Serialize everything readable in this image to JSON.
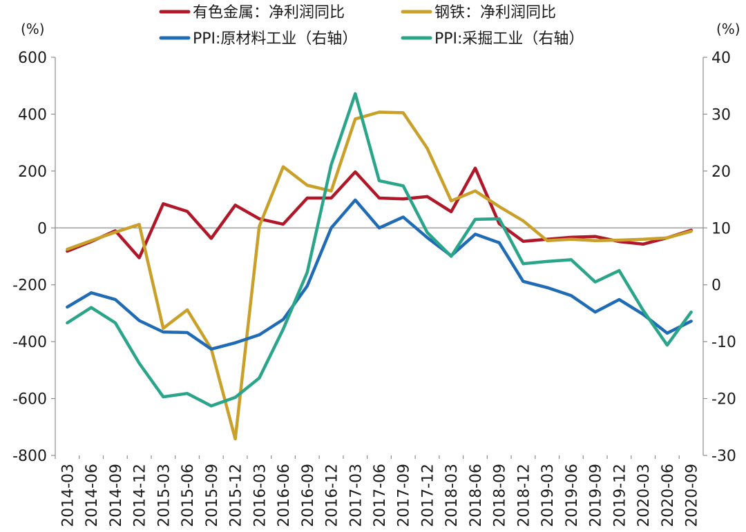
{
  "chart_data": {
    "type": "line",
    "x": [
      "2014-03",
      "2014-06",
      "2014-09",
      "2014-12",
      "2015-03",
      "2015-06",
      "2015-09",
      "2015-12",
      "2016-03",
      "2016-06",
      "2016-09",
      "2016-12",
      "2017-03",
      "2017-06",
      "2017-09",
      "2017-12",
      "2018-03",
      "2018-06",
      "2018-09",
      "2018-12",
      "2019-03",
      "2019-06",
      "2019-09",
      "2019-12",
      "2020-03",
      "2020-06",
      "2020-09"
    ],
    "left_axis": {
      "unit": "(%)",
      "ylim": [
        -800,
        600
      ],
      "ticks": [
        600,
        400,
        200,
        0,
        -200,
        -400,
        -600,
        -800
      ]
    },
    "right_axis": {
      "unit": "(%)",
      "ylim": [
        -30,
        40
      ],
      "ticks": [
        40,
        30,
        20,
        10,
        0,
        -10,
        -20,
        -30
      ]
    },
    "series": [
      {
        "name": "有色金属：净利润同比",
        "axis": "left",
        "color": "#b0182a",
        "values": [
          -82,
          -48,
          -10,
          -105,
          85,
          58,
          -37,
          80,
          32,
          13,
          105,
          105,
          197,
          105,
          102,
          110,
          57,
          210,
          15,
          -47,
          -40,
          -33,
          -30,
          -48,
          -57,
          -35,
          -8
        ]
      },
      {
        "name": "钢铁：净利润同比",
        "axis": "left",
        "color": "#c9a02a",
        "values": [
          -75,
          -45,
          -15,
          12,
          -353,
          -288,
          -425,
          -742,
          5,
          215,
          150,
          130,
          383,
          407,
          405,
          280,
          95,
          130,
          75,
          25,
          -45,
          -40,
          -45,
          -43,
          -40,
          -35,
          -12
        ]
      },
      {
        "name": "PPI:原材料工业（右轴）",
        "axis": "right",
        "color": "#1f6bb5",
        "values": [
          -3.9,
          -1.4,
          -2.6,
          -6.3,
          -8.3,
          -8.4,
          -11.3,
          -10.2,
          -8.8,
          -6.1,
          -0.2,
          10.0,
          14.9,
          10.0,
          11.9,
          8.3,
          5.1,
          8.9,
          7.4,
          0.6,
          -0.5,
          -1.9,
          -4.8,
          -2.6,
          -5.2,
          -8.5,
          -6.4
        ]
      },
      {
        "name": "PPI:采掘工业（右轴）",
        "axis": "right",
        "color": "#2aa58a",
        "values": [
          -6.7,
          -4.0,
          -6.7,
          -13.8,
          -19.7,
          -19.1,
          -21.3,
          -19.8,
          -16.4,
          -7.8,
          2.2,
          21.1,
          33.6,
          18.3,
          17.4,
          9.2,
          5.0,
          11.5,
          11.6,
          3.7,
          4.1,
          4.4,
          0.5,
          2.5,
          -4.5,
          -10.6,
          -4.8
        ]
      }
    ],
    "legend": {
      "placement": "top-center"
    }
  }
}
